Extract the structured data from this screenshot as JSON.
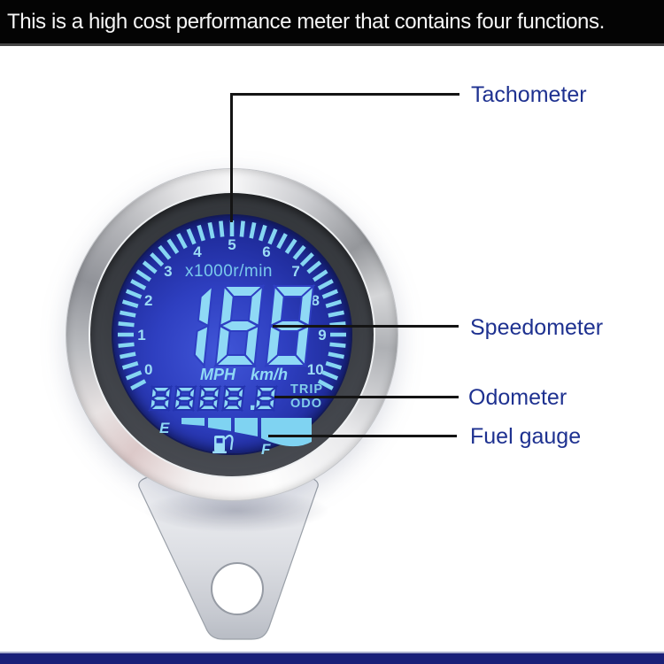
{
  "header": {
    "text": "This is a high cost performance meter that contains four functions."
  },
  "callouts": [
    {
      "id": "tachometer",
      "label": "Tachometer"
    },
    {
      "id": "speedometer",
      "label": "Speedometer"
    },
    {
      "id": "odometer",
      "label": "Odometer"
    },
    {
      "id": "fuel-gauge",
      "label": "Fuel gauge"
    }
  ],
  "gauge": {
    "tachometer": {
      "unit_label": "x1000r/min",
      "numbers": [
        "0",
        "1",
        "2",
        "3",
        "4",
        "5",
        "6",
        "7",
        "8",
        "9",
        "10"
      ],
      "tick_count": 43
    },
    "speedometer": {
      "value": "188",
      "unit_primary": "MPH",
      "unit_secondary": "km/h"
    },
    "odometer": {
      "value": "8888.8",
      "mode_labels": [
        "TRIP",
        "ODO"
      ]
    },
    "fuel": {
      "empty_label": "E",
      "full_label": "F",
      "segment_count": 4,
      "icon": "fuel-pump-icon"
    }
  },
  "colors": {
    "lcd_segment": "#8fd9f5",
    "lcd_tick": "#86d6f2",
    "lcd_number": "#9cdcf5",
    "lcd_background_mid": "#2e3ec2",
    "lcd_background_low": "#2434b0",
    "callout_text": "#1e3190",
    "callout_line": "#141414",
    "bottom_band": "#1a2078",
    "header_background": "#040404",
    "header_text": "#f5f5f5"
  }
}
